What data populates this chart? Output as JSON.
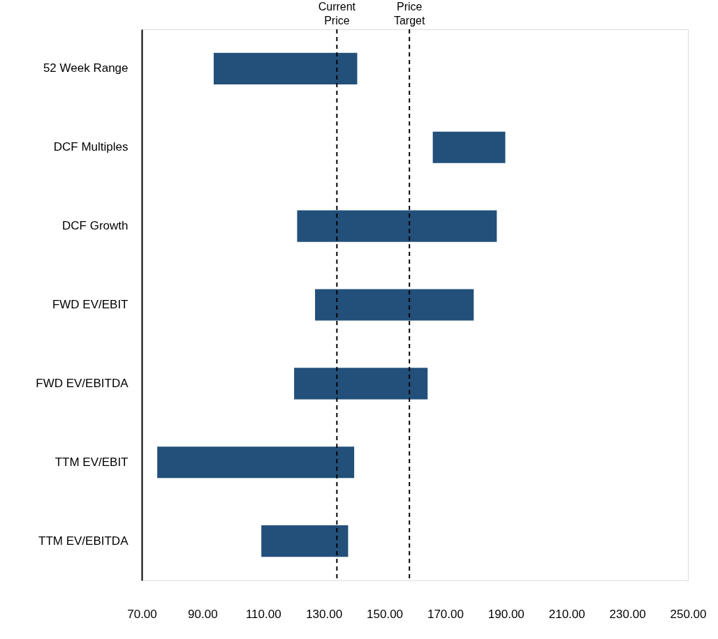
{
  "chart_data": {
    "type": "bar",
    "orientation": "horizontal",
    "categories": [
      "52 Week Range",
      "DCF Multiples",
      "DCF Growth",
      "FWD EV/EBIT",
      "FWD EV/EBITDA",
      "TTM EV/EBIT",
      "TTM EV/EBITDA"
    ],
    "base": [
      93.7,
      165.9,
      121.2,
      127.1,
      120.2,
      75.1,
      109.4
    ],
    "values": [
      47.3,
      23.9,
      65.8,
      52.3,
      44.0,
      64.9,
      28.6
    ],
    "color": "#22507a",
    "xlim": [
      70,
      250
    ],
    "xticks": [
      {
        "value": 70,
        "label": "70.00"
      },
      {
        "value": 90,
        "label": "90.00"
      },
      {
        "value": 110,
        "label": "110.00"
      },
      {
        "value": 130,
        "label": "130.00"
      },
      {
        "value": 150,
        "label": "150.00"
      },
      {
        "value": 170,
        "label": "170.00"
      },
      {
        "value": 190,
        "label": "190.00"
      },
      {
        "value": 210,
        "label": "210.00"
      },
      {
        "value": 230,
        "label": "230.00"
      },
      {
        "value": 250,
        "label": "250.00"
      }
    ],
    "ref_lines": [
      {
        "axis": "x",
        "value": 134.3,
        "label": "Current Price",
        "color": "#000000",
        "line_style": "dashed"
      },
      {
        "axis": "x",
        "value": 158.2,
        "label": "Price Target",
        "color": "#000000",
        "line_style": "dashed"
      }
    ],
    "grid": false
  }
}
